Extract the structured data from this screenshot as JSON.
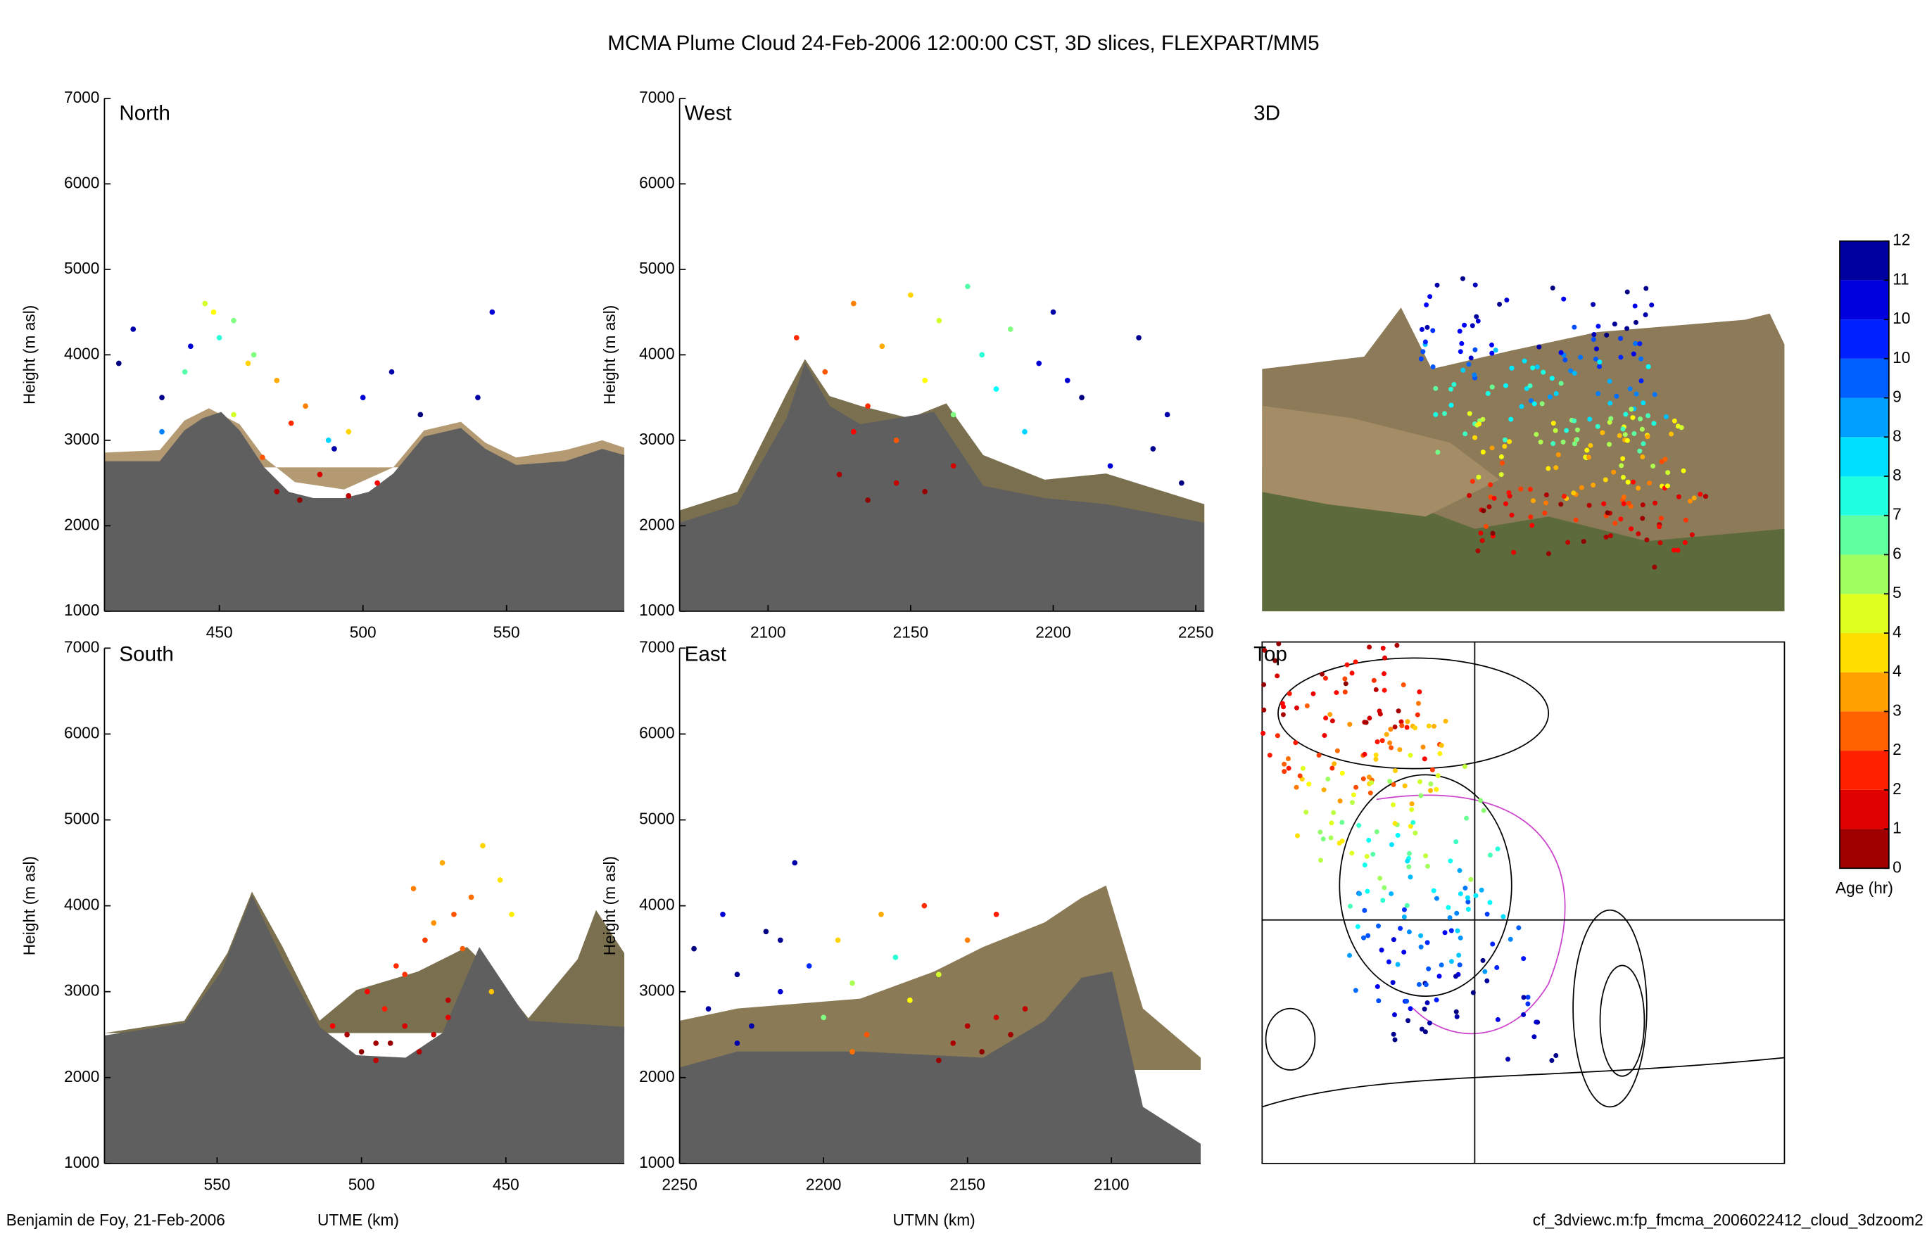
{
  "title": "MCMA Plume Cloud 24-Feb-2006 12:00:00 CST, 3D slices, FLEXPART/MM5",
  "footer_left": "Benjamin de Foy, 21-Feb-2006",
  "footer_right": "cf_3dviewc.m:fp_fmcma_2006022412_cloud_3dzoom2",
  "chart_data": [
    {
      "type": "scatter",
      "title": "North",
      "y_label": "Height (m asl)",
      "xlim": [
        410,
        591
      ],
      "xticks": [
        450,
        500,
        550
      ],
      "ylim": [
        1000,
        7000
      ],
      "yticks": [
        1000,
        2000,
        3000,
        4000,
        5000,
        6000,
        7000
      ],
      "x": [
        420,
        430,
        415,
        440,
        455,
        445,
        450,
        460,
        438,
        470,
        480,
        475,
        490,
        500,
        495,
        485,
        470,
        478,
        495,
        465,
        510,
        520,
        545,
        540,
        455,
        430,
        462,
        488,
        505,
        448
      ],
      "y": [
        4300,
        3500,
        3900,
        4100,
        4400,
        4600,
        4200,
        3900,
        3800,
        3700,
        3400,
        3200,
        2900,
        3500,
        3100,
        2600,
        2400,
        2300,
        2350,
        2800,
        3800,
        3300,
        4500,
        3500,
        3300,
        3100,
        4000,
        3000,
        2500,
        4500
      ],
      "age": [
        11.5,
        11.8,
        12,
        11,
        6,
        5,
        7,
        4,
        6.5,
        3.5,
        3,
        2,
        11.5,
        11,
        4,
        1,
        0.5,
        0.2,
        0.8,
        2.5,
        11.5,
        12,
        11,
        11.5,
        5,
        9,
        6,
        8,
        1.5,
        4.5
      ]
    },
    {
      "type": "scatter",
      "title": "West",
      "y_label": "Height (m asl)",
      "xlim": [
        2069,
        2253
      ],
      "xticks": [
        2100,
        2150,
        2200,
        2250
      ],
      "ylim": [
        1000,
        7000
      ],
      "yticks": [
        1000,
        2000,
        3000,
        4000,
        5000,
        6000,
        7000
      ],
      "x": [
        2110,
        2120,
        2130,
        2135,
        2140,
        2145,
        2150,
        2155,
        2160,
        2165,
        2170,
        2175,
        2180,
        2185,
        2190,
        2195,
        2200,
        2210,
        2220,
        2230,
        2240,
        2245,
        2125,
        2135,
        2145,
        2155,
        2165,
        2130,
        2205,
        2235
      ],
      "y": [
        4200,
        3800,
        4600,
        3400,
        4100,
        3000,
        4700,
        3700,
        4400,
        3300,
        4800,
        4000,
        3600,
        4300,
        3100,
        3900,
        4500,
        3500,
        2700,
        4200,
        3300,
        2500,
        2600,
        2300,
        2500,
        2400,
        2700,
        3100,
        3700,
        2900
      ],
      "age": [
        2,
        2.5,
        3,
        2,
        3.5,
        2.5,
        4,
        4.5,
        5,
        6,
        6.5,
        7,
        7.5,
        6,
        8,
        11,
        11.5,
        12,
        11,
        11.8,
        11.5,
        12,
        0.5,
        0.2,
        0.8,
        0.3,
        1,
        1.5,
        11,
        11.8
      ]
    },
    {
      "type": "scatter",
      "title": "South",
      "y_label": "Height (m asl)",
      "x_label": "UTME (km)",
      "xlim": [
        589,
        409
      ],
      "xticks": [
        550,
        500,
        450
      ],
      "ylim": [
        1000,
        7000
      ],
      "yticks": [
        1000,
        2000,
        3000,
        4000,
        5000,
        6000,
        7000
      ],
      "x": [
        505,
        500,
        495,
        490,
        485,
        480,
        475,
        470,
        498,
        488,
        478,
        468,
        492,
        482,
        472,
        462,
        458,
        452,
        485,
        475,
        465,
        455,
        510,
        448,
        470,
        495
      ],
      "y": [
        2500,
        2300,
        2200,
        2400,
        2600,
        2300,
        2500,
        2700,
        3000,
        3300,
        3600,
        3900,
        2800,
        4200,
        4500,
        4100,
        4700,
        4300,
        3200,
        3800,
        3500,
        3000,
        2600,
        3900,
        2900,
        2400
      ],
      "age": [
        0.5,
        0.2,
        0.8,
        0.3,
        1,
        0.6,
        0.9,
        1.2,
        1.5,
        2,
        2.2,
        2.5,
        1.8,
        3,
        3.5,
        2.8,
        4,
        4.2,
        2.1,
        3.2,
        2.6,
        3.8,
        1.4,
        4.3,
        0.7,
        0.4
      ]
    },
    {
      "type": "scatter",
      "title": "East",
      "y_label": "Height (m asl)",
      "x_label": "UTMN (km)",
      "xlim": [
        2250,
        2069
      ],
      "xticks": [
        2250,
        2200,
        2150,
        2100
      ],
      "ylim": [
        1000,
        7000
      ],
      "yticks": [
        1000,
        2000,
        3000,
        4000,
        5000,
        6000,
        7000
      ],
      "x": [
        2245,
        2240,
        2235,
        2230,
        2225,
        2220,
        2215,
        2210,
        2205,
        2200,
        2195,
        2190,
        2185,
        2180,
        2175,
        2170,
        2165,
        2160,
        2155,
        2150,
        2145,
        2140,
        2135,
        2130,
        2230,
        2215,
        2190,
        2160,
        2150,
        2140
      ],
      "y": [
        3500,
        2800,
        3900,
        3200,
        2600,
        3700,
        3000,
        4500,
        3300,
        2700,
        3600,
        3100,
        2500,
        3900,
        3400,
        2900,
        4000,
        3200,
        2400,
        3600,
        2300,
        2700,
        2500,
        2800,
        2400,
        3600,
        2300,
        2200,
        2600,
        3900
      ],
      "age": [
        12,
        11.5,
        11,
        11.8,
        11.5,
        12,
        11,
        11.5,
        10,
        6,
        4,
        5.5,
        2.5,
        3.5,
        7,
        4.5,
        2,
        5,
        0.5,
        3,
        0.2,
        1,
        0.4,
        0.8,
        11.5,
        11.8,
        2.8,
        0.3,
        0.6,
        1.8
      ]
    },
    {
      "type": "image",
      "title": "3D"
    },
    {
      "type": "image",
      "title": "Top"
    },
    {
      "type": "colorbar",
      "label": "Age (hr)",
      "lim": [
        0,
        12
      ],
      "ticks": [
        0,
        {
          "value": 0.75,
          "label": "1"
        },
        {
          "value": 1.5,
          "label": "2"
        },
        {
          "value": 2.25,
          "label": "2"
        },
        3,
        {
          "value": 3.75,
          "label": "4"
        },
        {
          "value": 4.5,
          "label": "4"
        },
        {
          "value": 5.25,
          "label": "5"
        },
        6,
        {
          "value": 6.75,
          "label": "7"
        },
        {
          "value": 7.5,
          "label": "8"
        },
        {
          "value": 8.25,
          "label": "8"
        },
        9,
        {
          "value": 9.75,
          "label": "10"
        },
        {
          "value": 10.5,
          "label": "10"
        },
        {
          "value": 11.25,
          "label": "11"
        },
        12
      ]
    }
  ]
}
